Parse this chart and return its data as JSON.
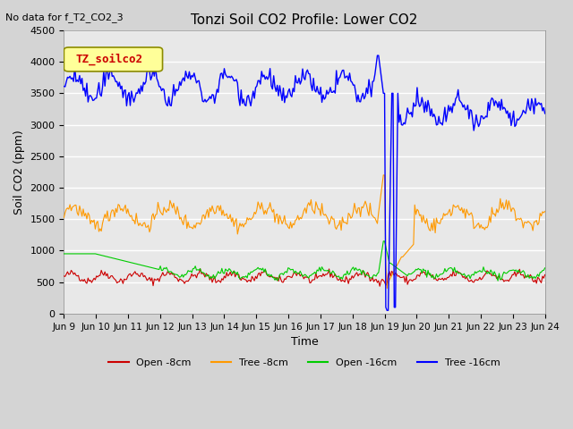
{
  "title": "Tonzi Soil CO2 Profile: Lower CO2",
  "subtitle": "No data for f_T2_CO2_3",
  "xlabel": "Time",
  "ylabel": "Soil CO2 (ppm)",
  "ylim": [
    0,
    4500
  ],
  "xlim": [
    0,
    15.0
  ],
  "plot_bg_color": "#e8e8e8",
  "fig_bg_color": "#d4d4d4",
  "grid_color": "#ffffff",
  "legend_label": "TZ_soilco2",
  "legend_box_color": "#ffff99",
  "legend_box_edge": "#8B8B00",
  "x_tick_labels": [
    "Jun 9",
    "Jun 10",
    "Jun 11",
    "Jun 12",
    "Jun 13",
    "Jun 14",
    "Jun 15",
    "Jun 16",
    "Jun 17",
    "Jun 18",
    "Jun 19",
    "Jun 20",
    "Jun 21",
    "Jun 22",
    "Jun 23",
    "Jun 24"
  ],
  "series": {
    "open_8cm": {
      "color": "#cc0000",
      "label": "Open -8cm"
    },
    "tree_8cm": {
      "color": "#ff9900",
      "label": "Tree -8cm"
    },
    "open_16cm": {
      "color": "#00cc00",
      "label": "Open -16cm"
    },
    "tree_16cm": {
      "color": "#0000ff",
      "label": "Tree -16cm"
    }
  }
}
